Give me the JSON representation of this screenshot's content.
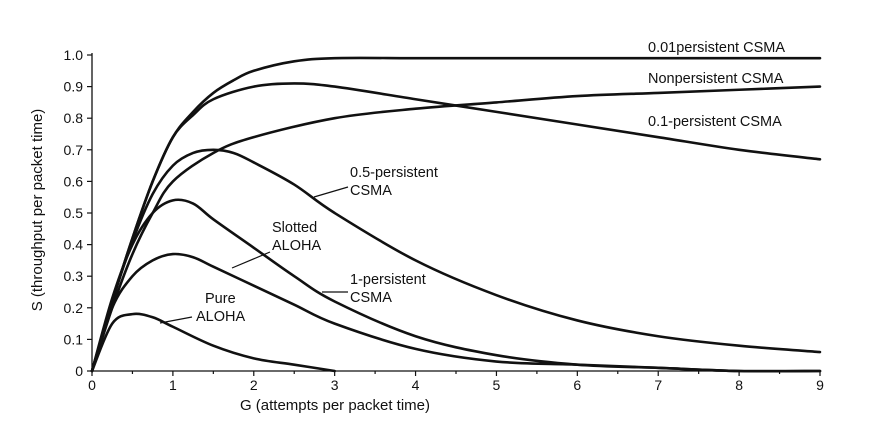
{
  "chart_data": {
    "type": "line",
    "xlabel": "G (attempts per packet time)",
    "ylabel": "S (throughput per packet time)",
    "xlim": [
      0,
      9
    ],
    "ylim": [
      0,
      1.0
    ],
    "xticks": [
      "0",
      "1",
      "2",
      "3",
      "4",
      "5",
      "6",
      "7",
      "8",
      "9"
    ],
    "yticks": [
      "0",
      "0.1",
      "0.2",
      "0.3",
      "0.4",
      "0.5",
      "0.6",
      "0.7",
      "0.8",
      "0.9",
      "1.0"
    ],
    "grid": false,
    "legend": "none",
    "series": [
      {
        "name": "0.01persistent CSMA",
        "points": [
          [
            0,
            0
          ],
          [
            0.25,
            0.22
          ],
          [
            0.5,
            0.42
          ],
          [
            0.75,
            0.6
          ],
          [
            1,
            0.74
          ],
          [
            1.25,
            0.82
          ],
          [
            1.5,
            0.88
          ],
          [
            1.75,
            0.92
          ],
          [
            2,
            0.95
          ],
          [
            2.5,
            0.98
          ],
          [
            3,
            0.99
          ],
          [
            4,
            0.99
          ],
          [
            5,
            0.99
          ],
          [
            6,
            0.99
          ],
          [
            7,
            0.99
          ],
          [
            8,
            0.99
          ],
          [
            9,
            0.99
          ]
        ]
      },
      {
        "name": "Nonpersistent CSMA",
        "points": [
          [
            0,
            0
          ],
          [
            0.25,
            0.2
          ],
          [
            0.5,
            0.37
          ],
          [
            0.75,
            0.5
          ],
          [
            1,
            0.6
          ],
          [
            1.5,
            0.69
          ],
          [
            2,
            0.74
          ],
          [
            3,
            0.8
          ],
          [
            4,
            0.83
          ],
          [
            5,
            0.85
          ],
          [
            6,
            0.87
          ],
          [
            7,
            0.88
          ],
          [
            8,
            0.89
          ],
          [
            9,
            0.9
          ]
        ]
      },
      {
        "name": "0.1-persistent CSMA",
        "points": [
          [
            0,
            0
          ],
          [
            0.25,
            0.22
          ],
          [
            0.5,
            0.42
          ],
          [
            0.75,
            0.6
          ],
          [
            1,
            0.74
          ],
          [
            1.25,
            0.81
          ],
          [
            1.5,
            0.86
          ],
          [
            2,
            0.9
          ],
          [
            2.5,
            0.91
          ],
          [
            3,
            0.9
          ],
          [
            4,
            0.86
          ],
          [
            5,
            0.82
          ],
          [
            6,
            0.78
          ],
          [
            7,
            0.74
          ],
          [
            8,
            0.7
          ],
          [
            9,
            0.67
          ]
        ]
      },
      {
        "name": "0.5-persistent CSMA",
        "points": [
          [
            0,
            0
          ],
          [
            0.25,
            0.22
          ],
          [
            0.5,
            0.41
          ],
          [
            0.75,
            0.56
          ],
          [
            1,
            0.65
          ],
          [
            1.25,
            0.69
          ],
          [
            1.5,
            0.7
          ],
          [
            1.75,
            0.69
          ],
          [
            2,
            0.66
          ],
          [
            2.5,
            0.59
          ],
          [
            3,
            0.5
          ],
          [
            4,
            0.35
          ],
          [
            5,
            0.24
          ],
          [
            6,
            0.16
          ],
          [
            7,
            0.11
          ],
          [
            8,
            0.08
          ],
          [
            9,
            0.06
          ]
        ]
      },
      {
        "name": "1-persistent CSMA",
        "points": [
          [
            0,
            0
          ],
          [
            0.25,
            0.23
          ],
          [
            0.5,
            0.4
          ],
          [
            0.75,
            0.5
          ],
          [
            1,
            0.54
          ],
          [
            1.25,
            0.53
          ],
          [
            1.5,
            0.48
          ],
          [
            2,
            0.39
          ],
          [
            2.5,
            0.3
          ],
          [
            3,
            0.22
          ],
          [
            4,
            0.11
          ],
          [
            5,
            0.05
          ],
          [
            6,
            0.02
          ],
          [
            7,
            0.01
          ],
          [
            8,
            0.0
          ],
          [
            9,
            0.0
          ]
        ]
      },
      {
        "name": "Slotted ALOHA",
        "points": [
          [
            0,
            0
          ],
          [
            0.25,
            0.2
          ],
          [
            0.5,
            0.3
          ],
          [
            0.75,
            0.35
          ],
          [
            1,
            0.37
          ],
          [
            1.25,
            0.36
          ],
          [
            1.5,
            0.33
          ],
          [
            2,
            0.27
          ],
          [
            2.5,
            0.21
          ],
          [
            3,
            0.15
          ],
          [
            4,
            0.07
          ],
          [
            5,
            0.03
          ],
          [
            6,
            0.02
          ],
          [
            7,
            0.01
          ],
          [
            8,
            0.0
          ],
          [
            9,
            0.0
          ]
        ]
      },
      {
        "name": "Pure ALOHA",
        "points": [
          [
            0,
            0
          ],
          [
            0.25,
            0.15
          ],
          [
            0.5,
            0.18
          ],
          [
            0.75,
            0.17
          ],
          [
            1,
            0.14
          ],
          [
            1.5,
            0.08
          ],
          [
            2,
            0.04
          ],
          [
            2.5,
            0.02
          ],
          [
            3,
            0.0
          ]
        ]
      }
    ],
    "labels": {
      "p001_csma": "0.01persistent CSMA",
      "nonpersistent_csma": "Nonpersistent CSMA",
      "p01_csma": "0.1-persistent CSMA",
      "p05_line1": "0.5-persistent",
      "p05_line2": "CSMA",
      "slotted_line1": "Slotted",
      "slotted_line2": "ALOHA",
      "p1_line1": "1-persistent",
      "p1_line2": "CSMA",
      "pure_line1": "Pure",
      "pure_line2": "ALOHA"
    }
  }
}
